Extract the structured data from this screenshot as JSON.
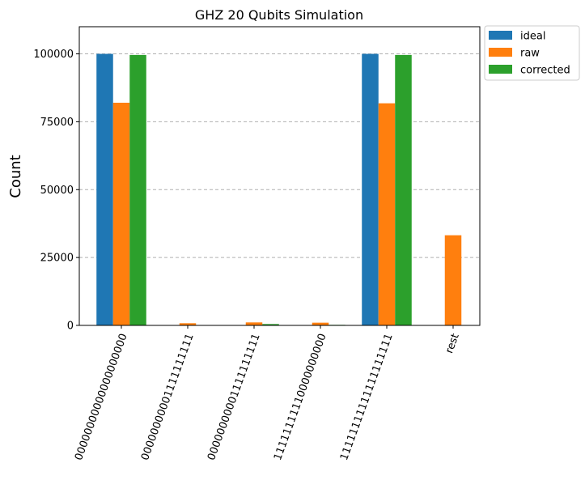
{
  "chart_data": {
    "type": "bar",
    "title": "GHZ 20 Qubits Simulation",
    "xlabel": "",
    "ylabel": "Count",
    "ylim": [
      0,
      110000
    ],
    "yticks": [
      0,
      25000,
      50000,
      75000,
      100000
    ],
    "grid": "horizontal dashed",
    "legend_placement": "outside top-right",
    "categories": [
      "00000000000000000000",
      "00000000001111111111",
      "00000000001111111111",
      "11111111110000000000",
      "11111111111111111111",
      "rest"
    ],
    "series": [
      {
        "name": "ideal",
        "color": "#1f77b4",
        "values": [
          100000,
          0,
          0,
          0,
          100000,
          0
        ]
      },
      {
        "name": "raw",
        "color": "#ff7f0e",
        "values": [
          82000,
          800,
          1100,
          1000,
          81800,
          33200
        ]
      },
      {
        "name": "corrected",
        "color": "#2ca02c",
        "values": [
          99600,
          0,
          500,
          200,
          99600,
          0
        ]
      }
    ]
  }
}
